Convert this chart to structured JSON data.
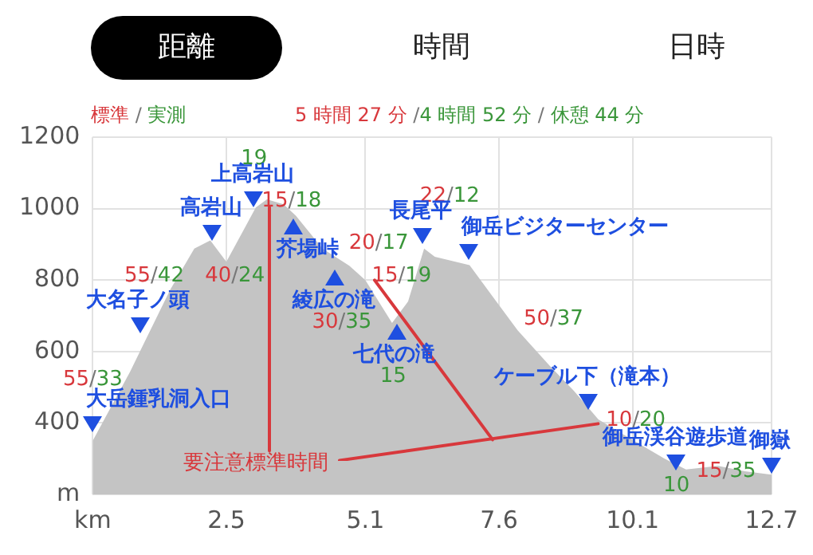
{
  "chart_data": {
    "type": "area",
    "x": [
      0,
      0.7,
      1.0,
      1.45,
      1.9,
      2.2,
      2.5,
      2.8,
      3.05,
      3.26,
      3.57,
      3.8,
      4.3,
      4.8,
      5.1,
      5.4,
      5.6,
      5.9,
      6.2,
      6.4,
      7.05,
      7.5,
      7.95,
      8.55,
      9.0,
      9.46,
      10.07,
      10.7,
      11.1,
      11.7,
      12.2,
      12.7
    ],
    "series": [
      {
        "color": "#c4c4c4",
        "values": [
          350,
          544,
          636,
          773,
          888,
          911,
          851,
          934,
          1003,
          1026,
          1012,
          980,
          888,
          840,
          800,
          728,
          680,
          740,
          888,
          865,
          842,
          750,
          659,
          560,
          490,
          410,
          355,
          300,
          270,
          280,
          265,
          255
        ]
      }
    ],
    "xlim": [
      0,
      12.7
    ],
    "xticks": [
      {
        "value": 0,
        "label": "km"
      },
      2.5,
      5.1,
      7.6,
      10.1,
      12.7
    ],
    "ylim": [
      200,
      1200
    ],
    "yticks": [
      {
        "value": 200,
        "label": "m"
      },
      400,
      600,
      800,
      1000,
      1200
    ],
    "grid": true,
    "annotations": [
      "距離",
      "時間",
      "日時",
      "標準 / 実測",
      "5 時間 27 分 /4 時間 52 分 / 休憩 44 分",
      "55/33",
      "55/42",
      "40/24",
      "19",
      "15/18",
      "20/17",
      "30/35",
      "15/19",
      "15",
      "22/12",
      "50/37",
      "10/20",
      "10",
      "15/35",
      {
        "text": "要注意標準時間",
        "x": 3.3,
        "y": 1020
      },
      {
        "text": "大岳鍾乳洞入口",
        "x": 0,
        "y": 397
      },
      {
        "text": "大名子ノ頭",
        "x": 0.88,
        "y": 672
      },
      {
        "text": "高岩山",
        "x": 2.24,
        "y": 934
      },
      {
        "text": "上高岩山",
        "x": 3.02,
        "y": 1028
      },
      {
        "text": "芥場峠",
        "x": 3.75,
        "y": 950
      },
      {
        "text": "綾広の滝",
        "x": 4.54,
        "y": 806
      },
      {
        "text": "七代の滝",
        "x": 5.68,
        "y": 655
      },
      {
        "text": "長尾平",
        "x": 6.17,
        "y": 925
      },
      {
        "text": "御岳ビジターセンター",
        "x": 7.02,
        "y": 880
      },
      {
        "text": "ケーブル下（滝本）",
        "x": 9.28,
        "y": 460
      },
      {
        "text": "御岳渓谷遊歩道",
        "x": 10.92,
        "y": 290
      },
      {
        "text": "御嶽",
        "x": 12.7,
        "y": 280
      }
    ]
  }
}
